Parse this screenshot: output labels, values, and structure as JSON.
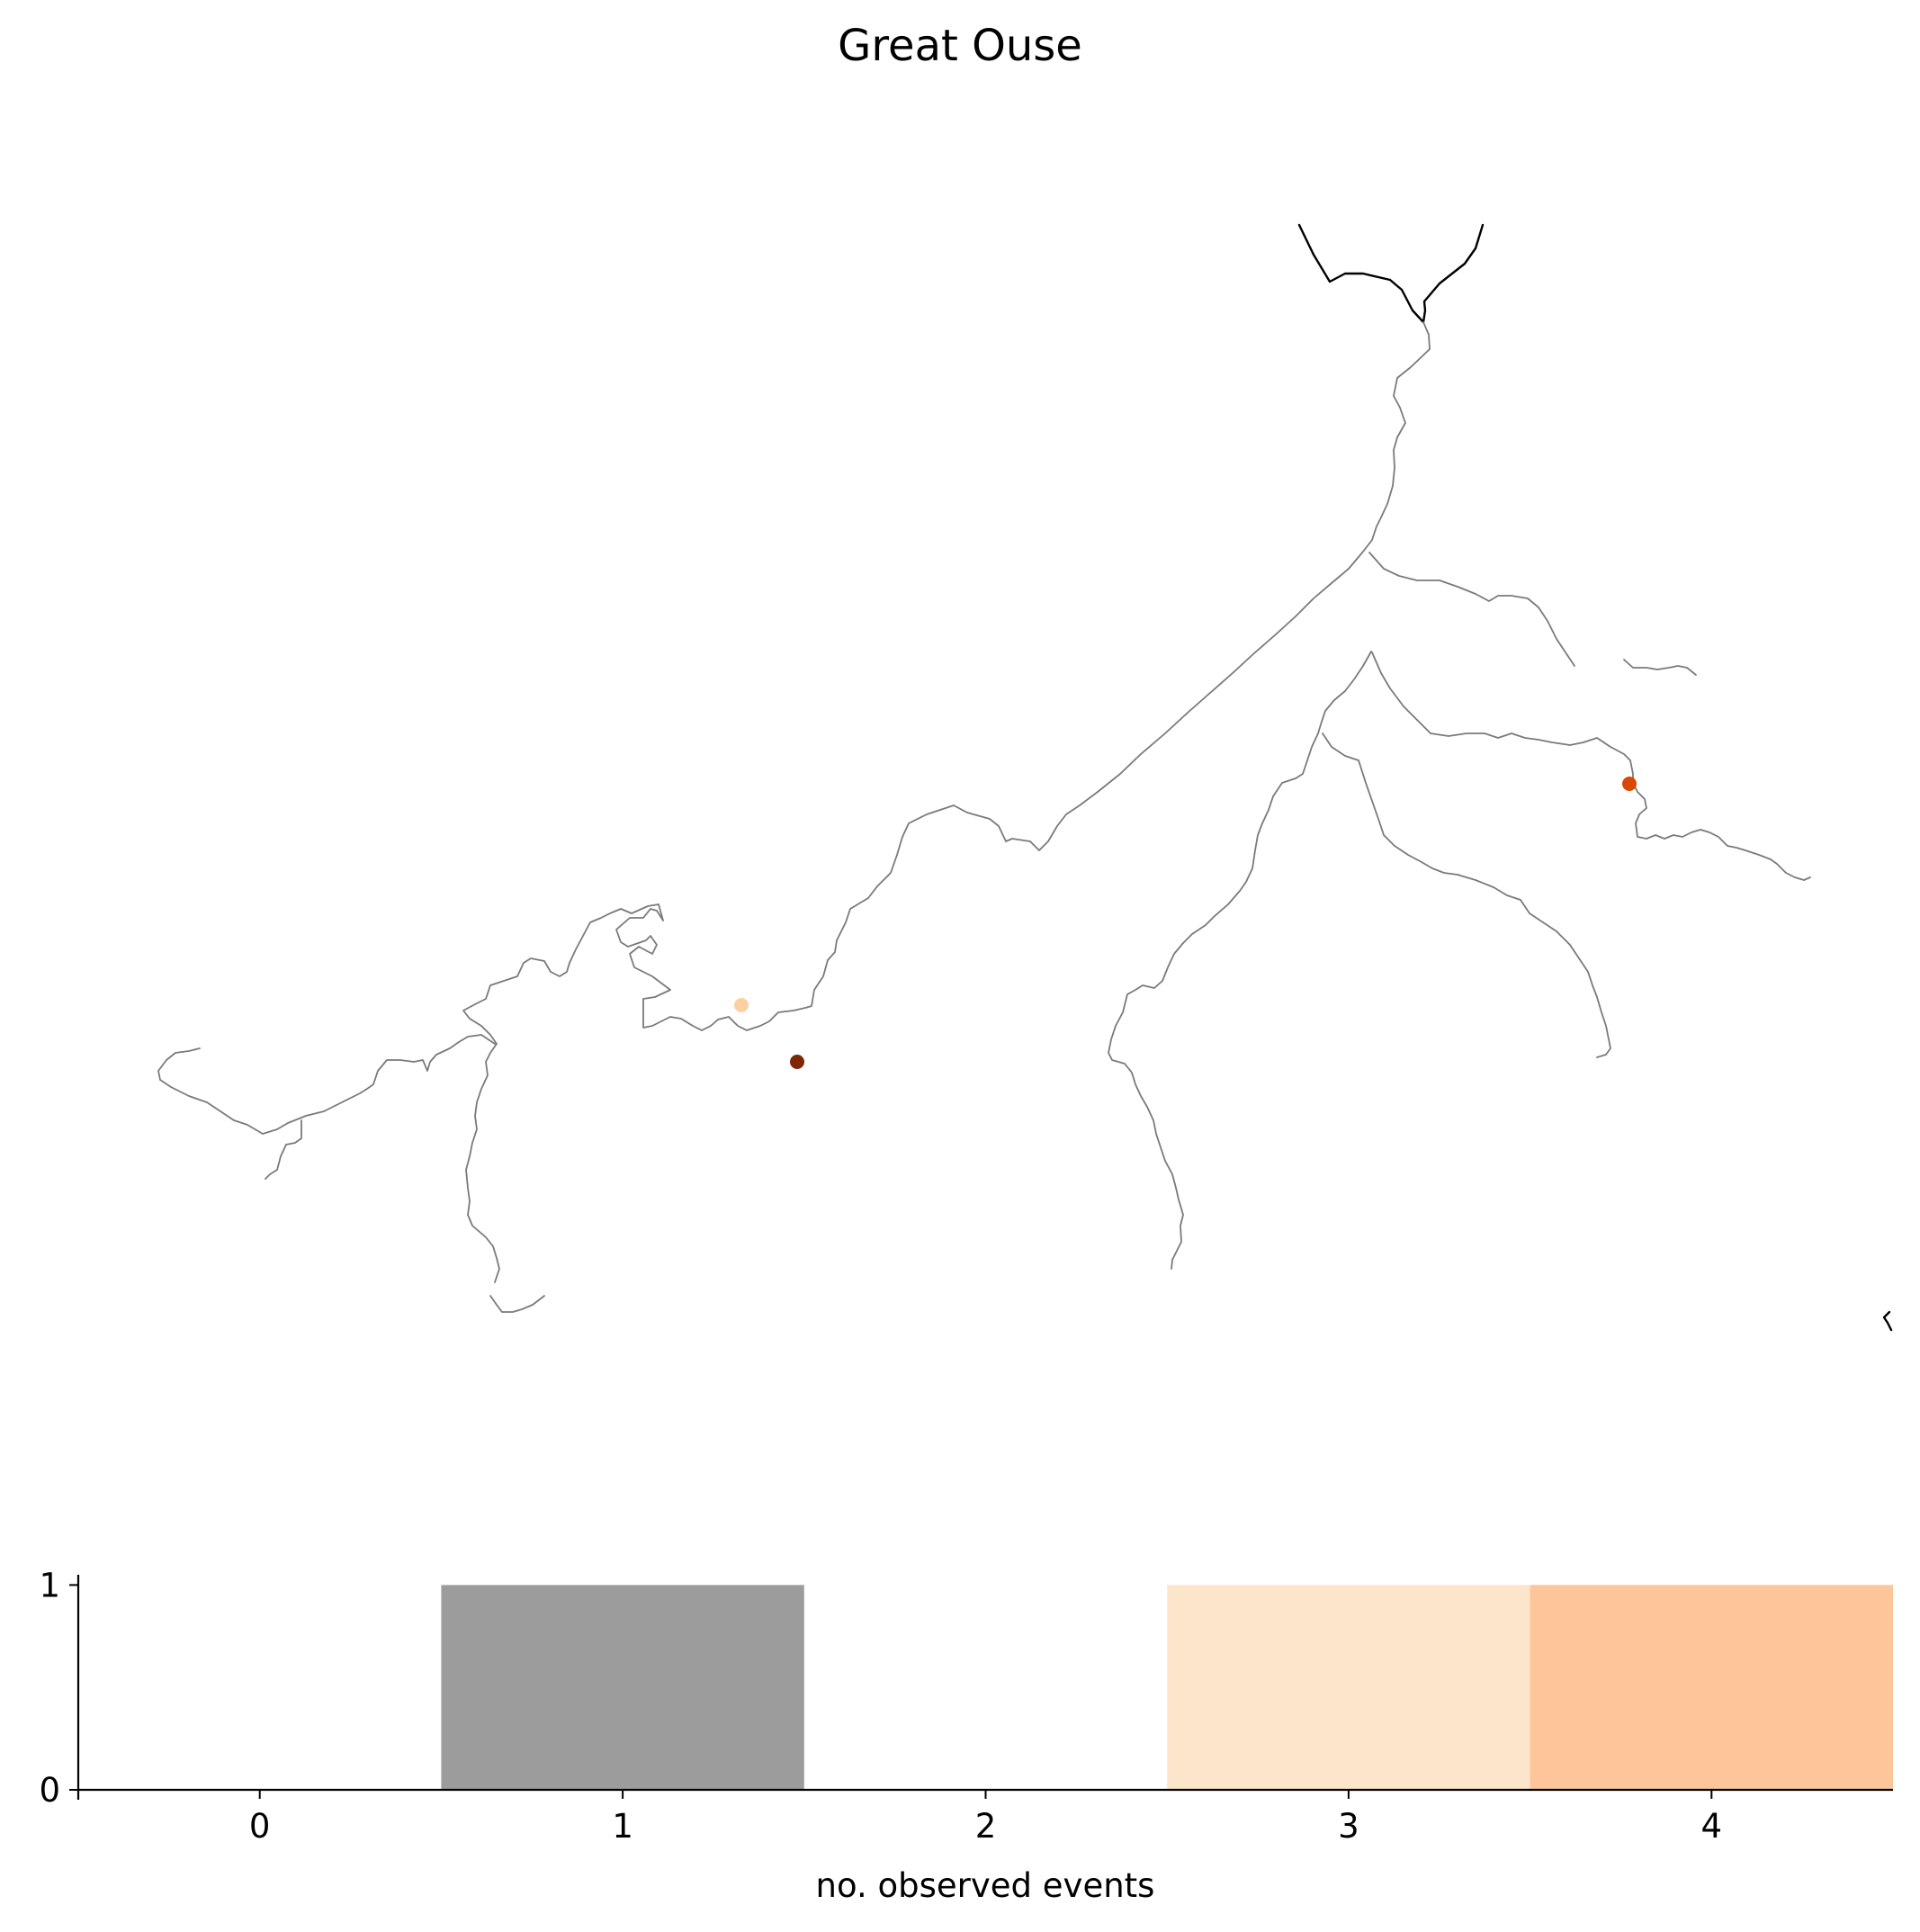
{
  "title": "Great Ouse",
  "map": {
    "station_colors": {
      "light": "#fdd0a2",
      "medium": "#d94801",
      "dark": "#7f2704"
    },
    "river_colors": {
      "main": "#000000",
      "tributary": "#7a7a7a"
    },
    "stations": [
      {
        "name": "station-light",
        "color": "#fdd0a2"
      },
      {
        "name": "station-dark",
        "color": "#7f2704"
      },
      {
        "name": "station-medium",
        "color": "#d94801"
      }
    ]
  },
  "chart_data": {
    "type": "bar",
    "categories": [
      "0",
      "1",
      "2",
      "3",
      "4"
    ],
    "values": [
      0,
      1,
      0,
      1,
      1
    ],
    "bar_colors": [
      "#ffffff",
      "#9c9c9c",
      "#ffffff",
      "#fde5cc",
      "#fcc59a"
    ],
    "xlabel": "no. observed events",
    "ylabel": "",
    "x_ticks": [
      "0",
      "1",
      "2",
      "3",
      "4"
    ],
    "y_ticks": [
      "0",
      "1"
    ],
    "xlim": [
      -0.5,
      4.5
    ],
    "ylim": [
      0,
      1.05
    ],
    "grid": false
  }
}
